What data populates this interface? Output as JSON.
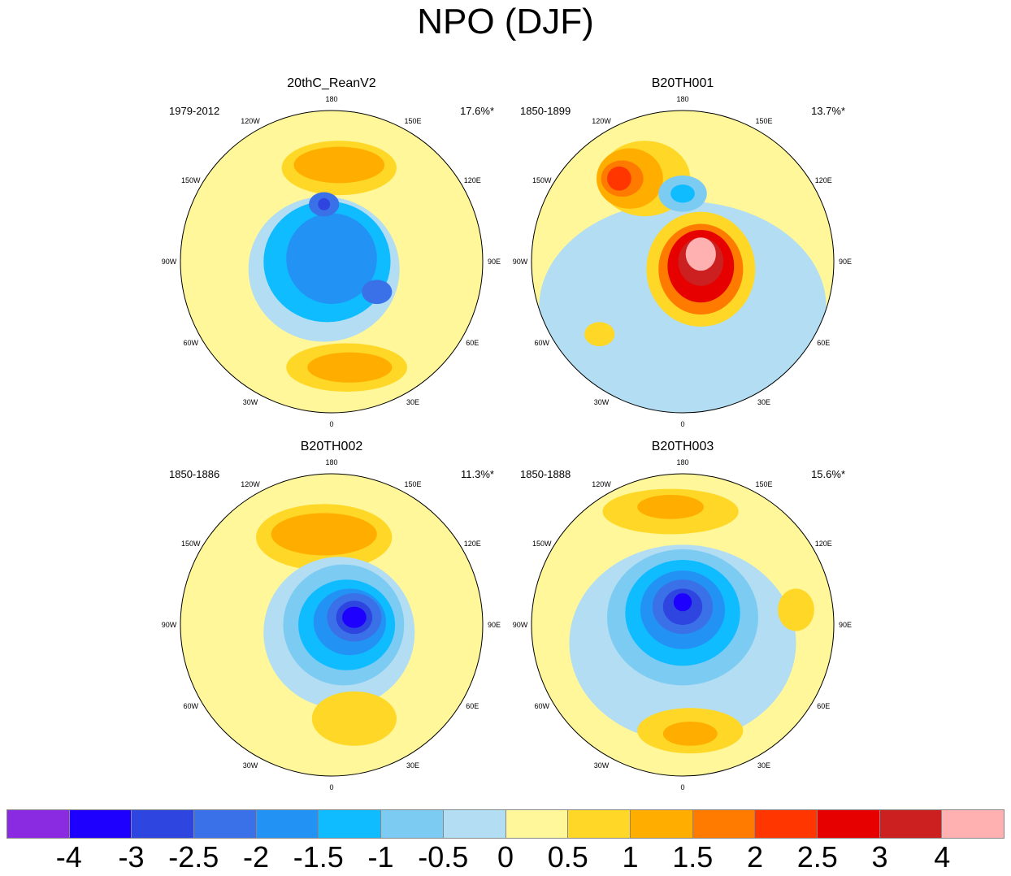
{
  "title": "NPO (DJF)",
  "longitude_labels": {
    "top": "180",
    "upper_left": "150W",
    "upper_right": "150E",
    "mid_upper_left": "120W",
    "mid_upper_right": "120E",
    "left": "90W",
    "right": "90E",
    "mid_lower_left": "60W",
    "mid_lower_right": "60E",
    "lower_left": "30W",
    "lower_right": "30E",
    "bottom": "0"
  },
  "panels": [
    {
      "title": "20thC_ReanV2",
      "period": "1979-2012",
      "percent": "17.6%*",
      "pattern": [
        {
          "dx": 0.05,
          "dy": -0.62,
          "rx": 0.38,
          "ry": 0.18,
          "v": 0.5
        },
        {
          "dx": 0.05,
          "dy": -0.64,
          "rx": 0.3,
          "ry": 0.12,
          "v": 1
        },
        {
          "dx": -0.05,
          "dy": 0.05,
          "rx": 0.5,
          "ry": 0.48,
          "v": -0.5
        },
        {
          "dx": -0.03,
          "dy": 0.0,
          "rx": 0.42,
          "ry": 0.4,
          "v": -1.5
        },
        {
          "dx": 0.0,
          "dy": -0.02,
          "rx": 0.3,
          "ry": 0.3,
          "v": -2
        },
        {
          "dx": -0.05,
          "dy": -0.38,
          "rx": 0.1,
          "ry": 0.08,
          "v": -2.5
        },
        {
          "dx": -0.05,
          "dy": -0.38,
          "rx": 0.04,
          "ry": 0.04,
          "v": -3
        },
        {
          "dx": 0.3,
          "dy": 0.2,
          "rx": 0.1,
          "ry": 0.08,
          "v": -2.5
        },
        {
          "dx": 0.1,
          "dy": 0.7,
          "rx": 0.4,
          "ry": 0.16,
          "v": 0.5
        },
        {
          "dx": 0.12,
          "dy": 0.7,
          "rx": 0.28,
          "ry": 0.1,
          "v": 1
        }
      ]
    },
    {
      "title": "B20TH001",
      "period": "1850-1899",
      "percent": "13.7%*",
      "pattern": [
        {
          "dx": 0.0,
          "dy": 0.3,
          "rx": 0.95,
          "ry": 0.7,
          "v": -0.5
        },
        {
          "dx": -0.25,
          "dy": -0.55,
          "rx": 0.3,
          "ry": 0.25,
          "v": 0.5
        },
        {
          "dx": -0.35,
          "dy": -0.55,
          "rx": 0.22,
          "ry": 0.2,
          "v": 1
        },
        {
          "dx": -0.4,
          "dy": -0.55,
          "rx": 0.14,
          "ry": 0.12,
          "v": 1.5
        },
        {
          "dx": -0.42,
          "dy": -0.55,
          "rx": 0.08,
          "ry": 0.08,
          "v": 2
        },
        {
          "dx": 0.0,
          "dy": -0.45,
          "rx": 0.16,
          "ry": 0.12,
          "v": -1
        },
        {
          "dx": 0.0,
          "dy": -0.45,
          "rx": 0.08,
          "ry": 0.06,
          "v": -1.5
        },
        {
          "dx": 0.12,
          "dy": 0.05,
          "rx": 0.36,
          "ry": 0.38,
          "v": 0.5
        },
        {
          "dx": 0.12,
          "dy": 0.05,
          "rx": 0.28,
          "ry": 0.3,
          "v": 1.5
        },
        {
          "dx": 0.12,
          "dy": 0.03,
          "rx": 0.22,
          "ry": 0.24,
          "v": 2.5
        },
        {
          "dx": 0.12,
          "dy": 0.0,
          "rx": 0.15,
          "ry": 0.16,
          "v": 3
        },
        {
          "dx": 0.12,
          "dy": -0.05,
          "rx": 0.1,
          "ry": 0.11,
          "v": 4
        },
        {
          "dx": -0.55,
          "dy": 0.48,
          "rx": 0.1,
          "ry": 0.08,
          "v": 0.5
        }
      ]
    },
    {
      "title": "B20TH002",
      "period": "1850-1886",
      "percent": "11.3%*",
      "pattern": [
        {
          "dx": -0.05,
          "dy": -0.58,
          "rx": 0.45,
          "ry": 0.22,
          "v": 0.5
        },
        {
          "dx": -0.05,
          "dy": -0.6,
          "rx": 0.35,
          "ry": 0.14,
          "v": 1
        },
        {
          "dx": 0.05,
          "dy": 0.05,
          "rx": 0.5,
          "ry": 0.5,
          "v": -0.5
        },
        {
          "dx": 0.08,
          "dy": 0.0,
          "rx": 0.4,
          "ry": 0.4,
          "v": -1
        },
        {
          "dx": 0.1,
          "dy": 0.0,
          "rx": 0.32,
          "ry": 0.3,
          "v": -1.5
        },
        {
          "dx": 0.12,
          "dy": -0.02,
          "rx": 0.24,
          "ry": 0.22,
          "v": -2
        },
        {
          "dx": 0.15,
          "dy": -0.05,
          "rx": 0.18,
          "ry": 0.16,
          "v": -2.5
        },
        {
          "dx": 0.15,
          "dy": -0.05,
          "rx": 0.12,
          "ry": 0.11,
          "v": -3
        },
        {
          "dx": 0.15,
          "dy": -0.05,
          "rx": 0.08,
          "ry": 0.07,
          "v": -4
        },
        {
          "dx": 0.15,
          "dy": 0.62,
          "rx": 0.28,
          "ry": 0.18,
          "v": 0.5
        }
      ]
    },
    {
      "title": "B20TH003",
      "period": "1850-1888",
      "percent": "15.6%*",
      "pattern": [
        {
          "dx": -0.08,
          "dy": -0.75,
          "rx": 0.45,
          "ry": 0.15,
          "v": 0.5
        },
        {
          "dx": -0.08,
          "dy": -0.78,
          "rx": 0.22,
          "ry": 0.08,
          "v": 1
        },
        {
          "dx": 0.0,
          "dy": 0.12,
          "rx": 0.75,
          "ry": 0.65,
          "v": -0.5
        },
        {
          "dx": 0.0,
          "dy": -0.05,
          "rx": 0.5,
          "ry": 0.45,
          "v": -1
        },
        {
          "dx": 0.0,
          "dy": -0.08,
          "rx": 0.38,
          "ry": 0.35,
          "v": -1.5
        },
        {
          "dx": 0.0,
          "dy": -0.1,
          "rx": 0.28,
          "ry": 0.26,
          "v": -2
        },
        {
          "dx": 0.0,
          "dy": -0.12,
          "rx": 0.2,
          "ry": 0.18,
          "v": -2.5
        },
        {
          "dx": 0.0,
          "dy": -0.12,
          "rx": 0.13,
          "ry": 0.12,
          "v": -3
        },
        {
          "dx": 0.0,
          "dy": -0.15,
          "rx": 0.06,
          "ry": 0.06,
          "v": -4
        },
        {
          "dx": 0.05,
          "dy": 0.7,
          "rx": 0.35,
          "ry": 0.15,
          "v": 0.5
        },
        {
          "dx": 0.05,
          "dy": 0.72,
          "rx": 0.18,
          "ry": 0.08,
          "v": 1
        },
        {
          "dx": 0.75,
          "dy": -0.1,
          "rx": 0.12,
          "ry": 0.14,
          "v": 0.5
        }
      ]
    }
  ],
  "colorbar": {
    "levels": [
      "-4",
      "-3",
      "-2.5",
      "-2",
      "-1.5",
      "-1",
      "-0.5",
      "0",
      "0.5",
      "1",
      "1.5",
      "2",
      "2.5",
      "3",
      "4"
    ],
    "colors": [
      "#8a2be2",
      "#1e00ff",
      "#2e45e0",
      "#3a70e8",
      "#2293f5",
      "#0fbcff",
      "#7ccbf2",
      "#b2ddf2",
      "#fff799",
      "#ffd726",
      "#ffae00",
      "#ff7b00",
      "#ff3600",
      "#e60000",
      "#cc1f1f",
      "#ffb0b0"
    ]
  }
}
